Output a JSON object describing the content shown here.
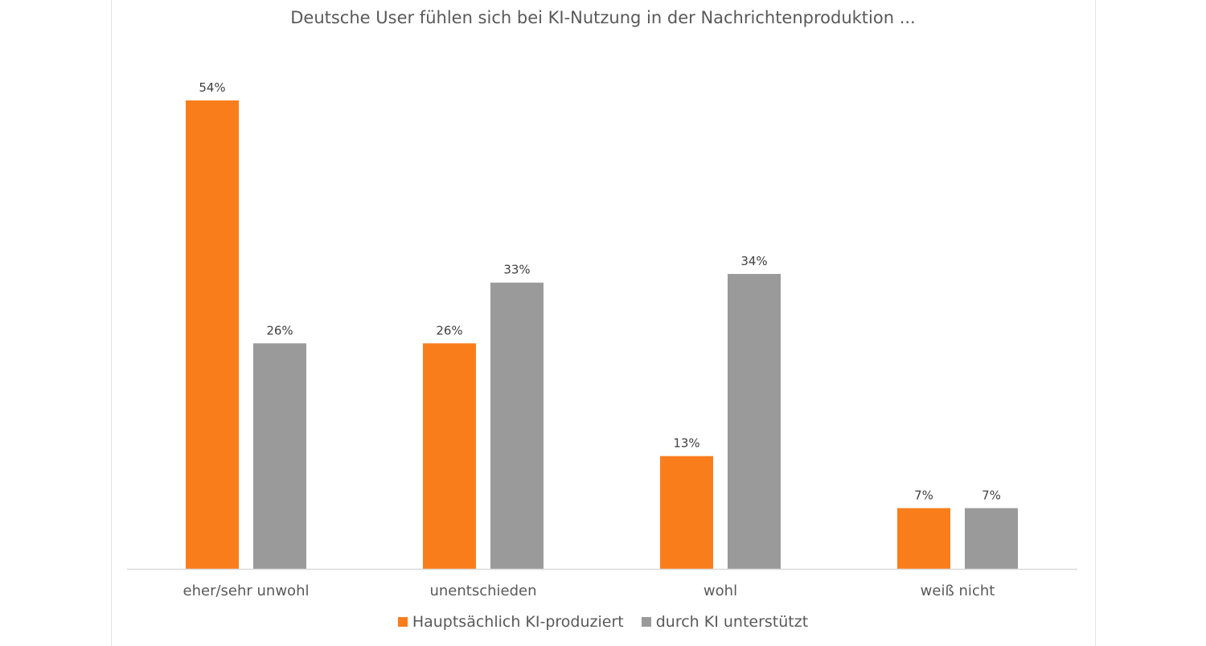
{
  "chart_data": {
    "type": "bar",
    "title": "Deutsche User fühlen sich bei KI-Nutzung in der Nachrichtenproduktion ...",
    "categories": [
      "eher/sehr unwohl",
      "unentschieden",
      "wohl",
      "weiß nicht"
    ],
    "series": [
      {
        "name": "Hauptsächlich KI-produziert",
        "values": [
          54,
          26,
          13,
          7
        ],
        "labels": [
          "54%",
          "26%",
          "13%",
          "7%"
        ],
        "color": "#FA7D1C"
      },
      {
        "name": "durch KI unterstützt",
        "values": [
          26,
          33,
          34,
          7
        ],
        "labels": [
          "26%",
          "33%",
          "34%",
          "7%"
        ],
        "color": "#9A9A9A"
      }
    ],
    "xlabel": "",
    "ylabel": "",
    "ylim": [
      0,
      54
    ],
    "grid": false,
    "legend_position": "bottom"
  }
}
